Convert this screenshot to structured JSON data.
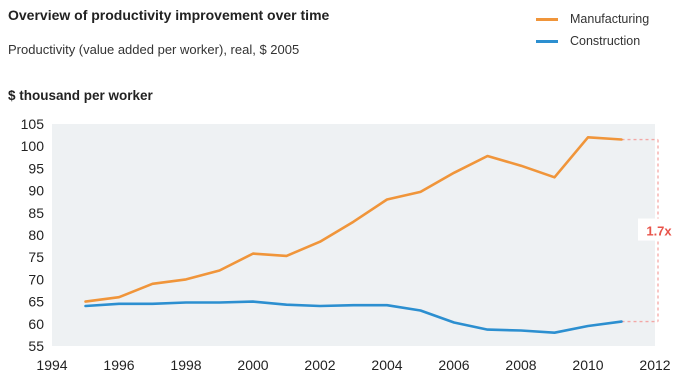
{
  "header": {
    "title": "Overview of productivity improvement over time",
    "subtitle": "Productivity (value added per worker), real, $ 2005"
  },
  "legend": {
    "items": [
      {
        "label": "Manufacturing",
        "color": "#F0953A"
      },
      {
        "label": "Construction",
        "color": "#2C8FD0"
      }
    ]
  },
  "chart_data": {
    "type": "line",
    "title": "Overview of productivity improvement over time",
    "subtitle": "Productivity (value added per worker), real, $ 2005",
    "ylabel": "$ thousand per worker",
    "xlabel": "",
    "xlim": [
      1994,
      2012
    ],
    "ylim": [
      55,
      105
    ],
    "x_ticks": [
      1994,
      1996,
      1998,
      2000,
      2002,
      2004,
      2006,
      2008,
      2010,
      2012
    ],
    "y_ticks": [
      55,
      60,
      65,
      70,
      75,
      80,
      85,
      90,
      95,
      100,
      105
    ],
    "grid": false,
    "legend_position": "top-right",
    "x": [
      1995,
      1996,
      1997,
      1998,
      1999,
      2000,
      2001,
      2002,
      2003,
      2004,
      2005,
      2006,
      2007,
      2008,
      2009,
      2010,
      2011
    ],
    "series": [
      {
        "name": "Manufacturing",
        "color": "#F0953A",
        "values": [
          65,
          66,
          69,
          70,
          72,
          75.8,
          75.3,
          78.5,
          83,
          88,
          89.7,
          94,
          97.8,
          95.6,
          93,
          102,
          101.5
        ]
      },
      {
        "name": "Construction",
        "color": "#2C8FD0",
        "values": [
          64,
          64.5,
          64.5,
          64.8,
          64.8,
          65,
          64.3,
          64,
          64.2,
          64.2,
          63,
          60.3,
          58.7,
          58.5,
          58,
          59.5,
          60.5
        ]
      }
    ],
    "annotation": {
      "label": "1.7x",
      "color": "#E8534A"
    }
  }
}
